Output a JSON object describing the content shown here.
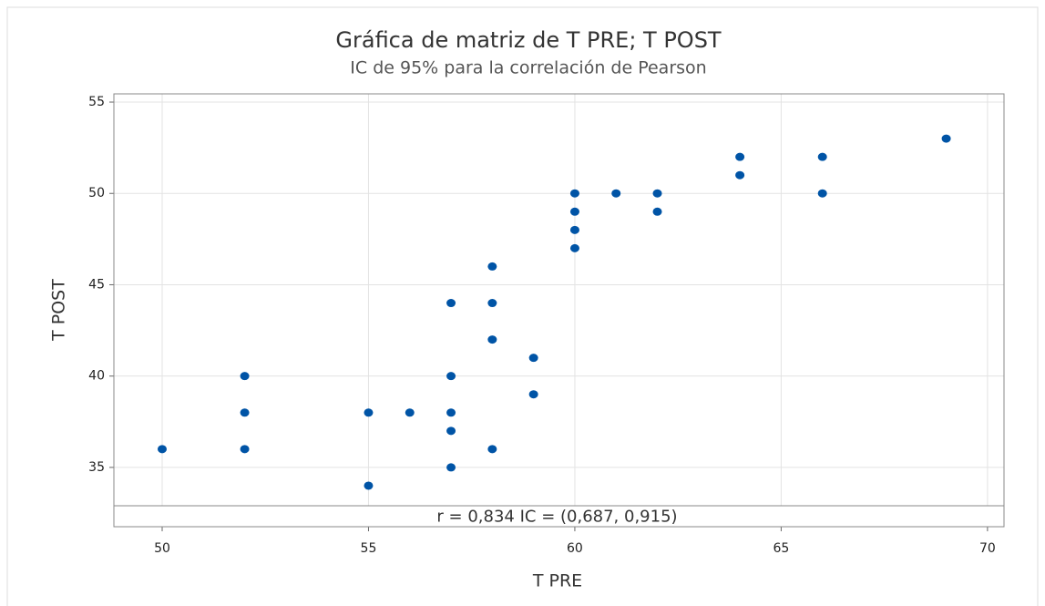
{
  "chart_data": {
    "type": "scatter",
    "title": "Gráfica de matriz de T PRE; T POST",
    "subtitle": "IC de 95% para la correlación de Pearson",
    "x_label": "T PRE",
    "y_label": "T POST",
    "annotation": "r = 0,834  IC = (0,687, 0,915)",
    "x": [
      50,
      52,
      52,
      52,
      55,
      55,
      56,
      57,
      57,
      57,
      57,
      57,
      58,
      58,
      58,
      58,
      59,
      59,
      60,
      60,
      60,
      60,
      61,
      62,
      62,
      64,
      64,
      66,
      66,
      69
    ],
    "values": [
      36,
      40,
      38,
      36,
      38,
      34,
      38,
      44,
      40,
      38,
      37,
      35,
      46,
      44,
      42,
      36,
      41,
      39,
      50,
      49,
      48,
      47,
      50,
      50,
      49,
      52,
      51,
      52,
      50,
      53
    ],
    "color": "#0054a6",
    "xlim": [
      48.83,
      70.4
    ],
    "xticks": [
      50,
      55,
      60,
      65,
      70
    ],
    "ylim": [
      32.9,
      55.45
    ],
    "yticks": [
      35,
      40,
      45,
      50,
      55
    ],
    "grid": true
  }
}
